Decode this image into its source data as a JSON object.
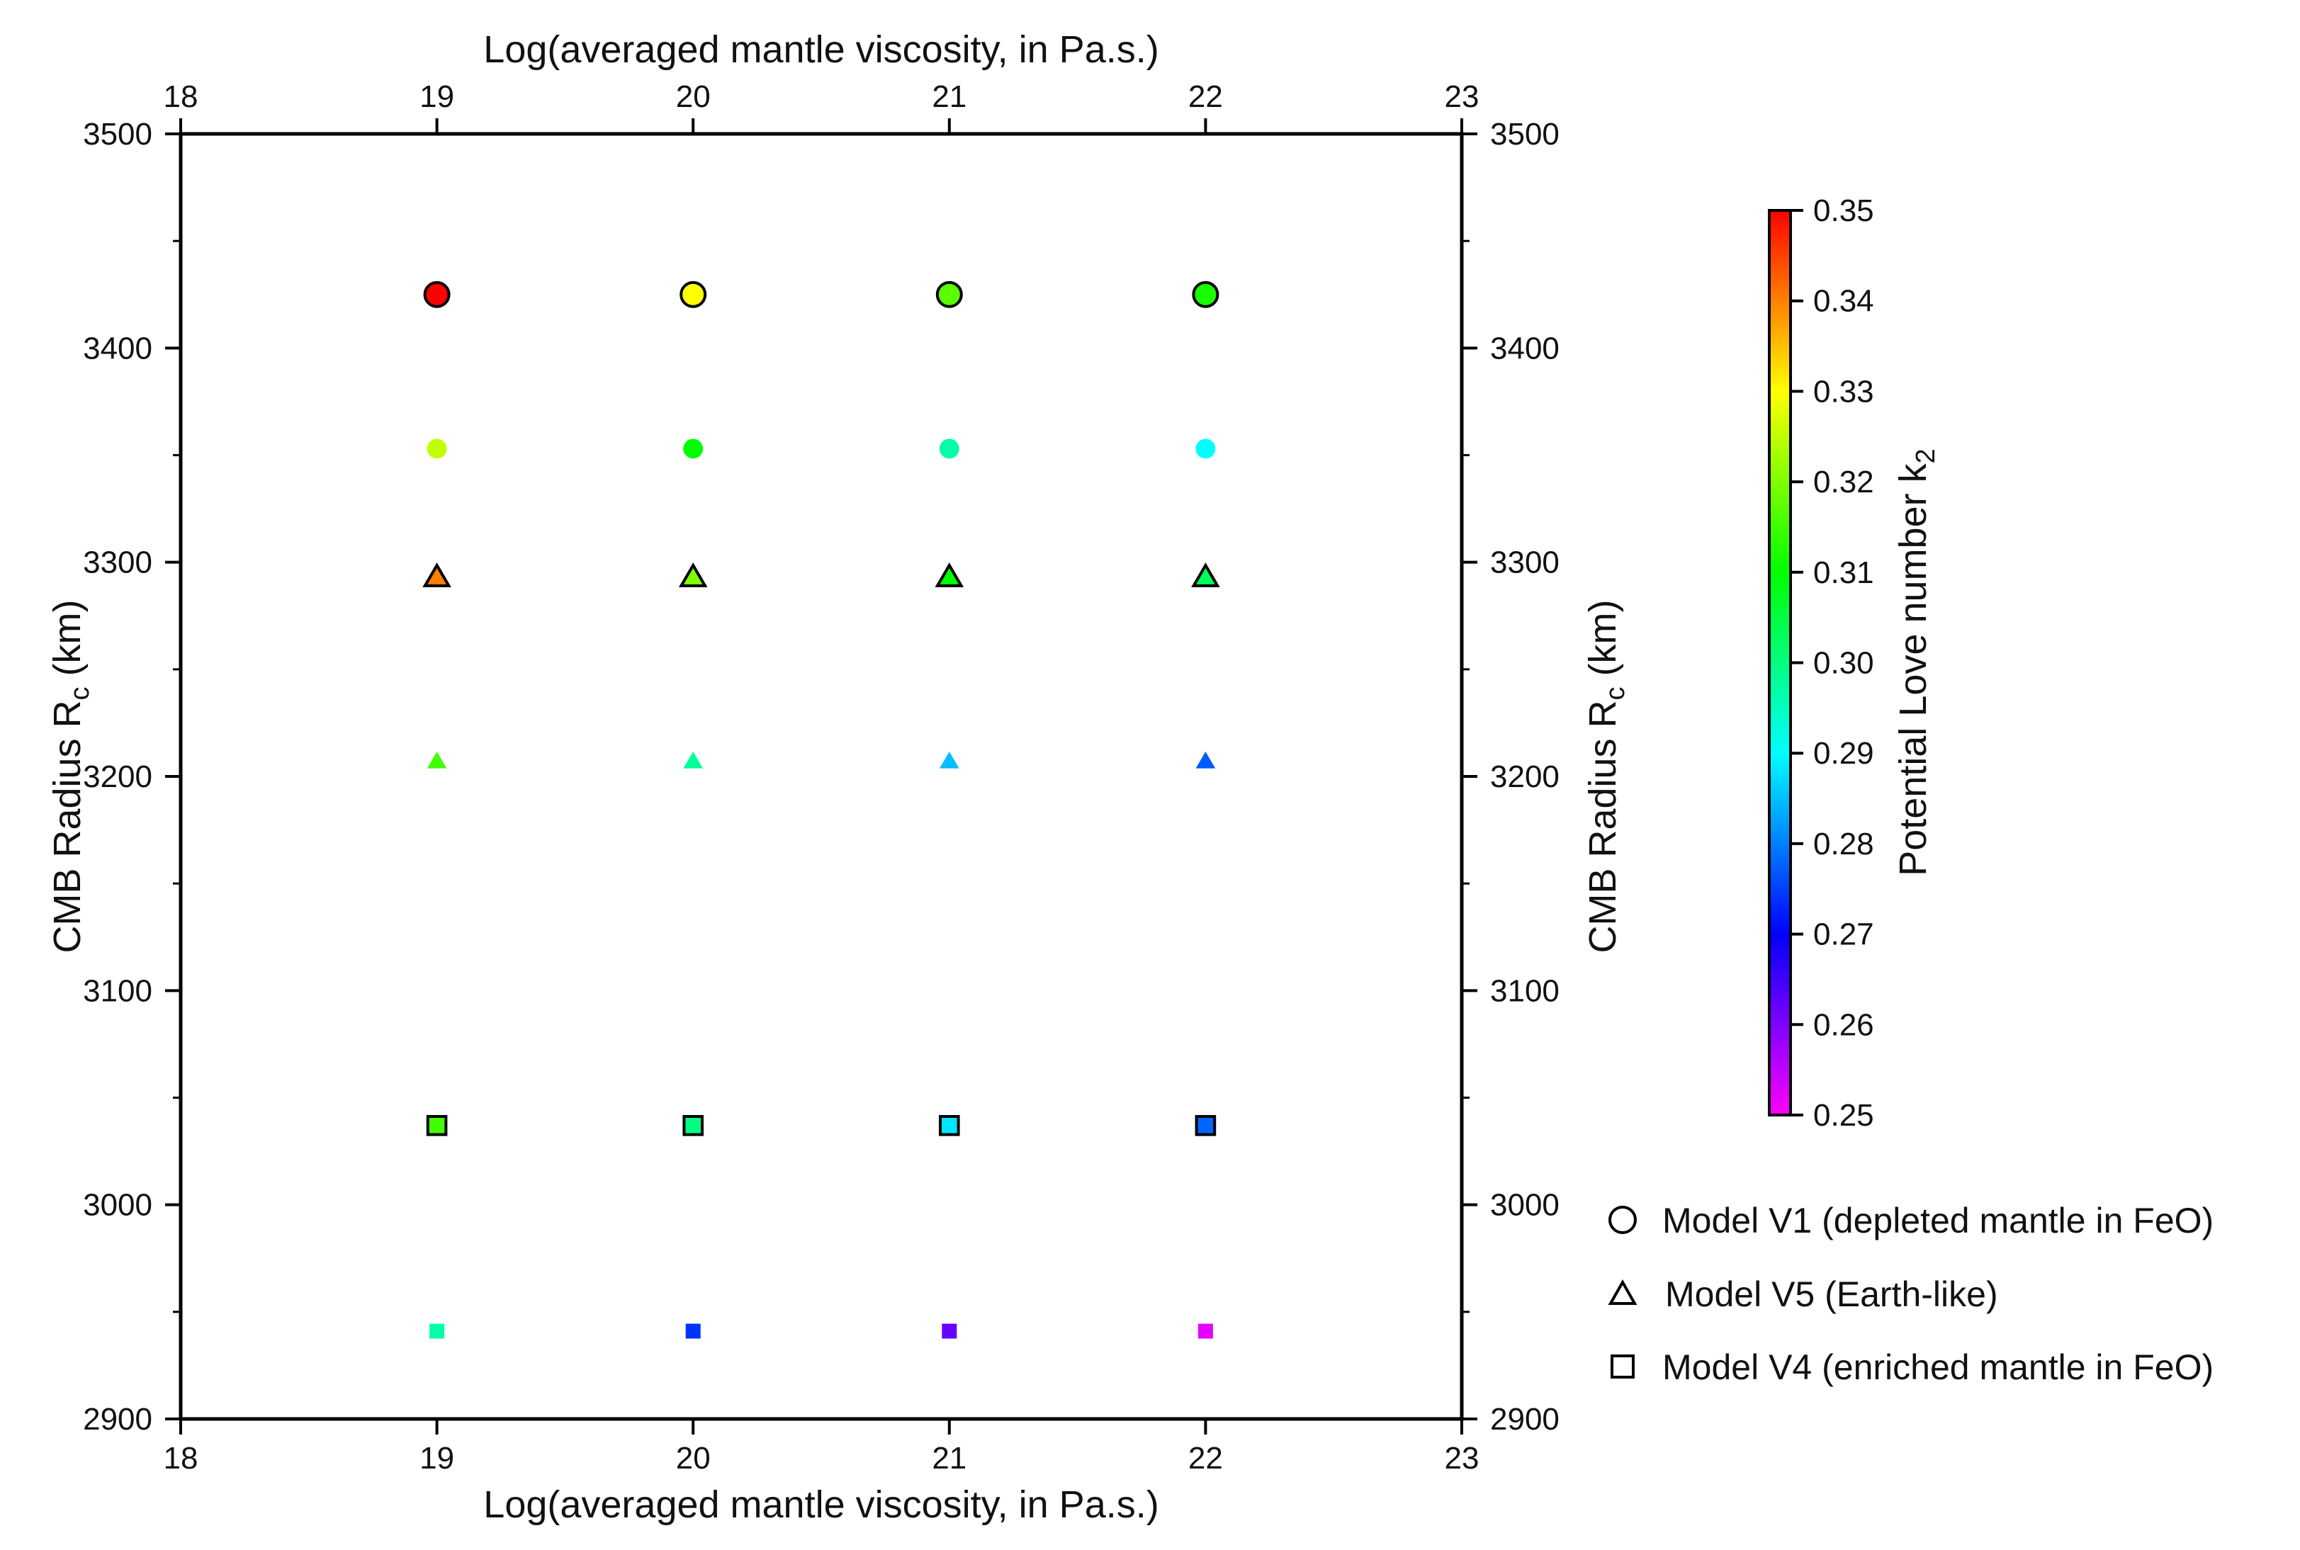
{
  "chart_data": {
    "type": "scatter",
    "x_axis": {
      "label": "Log(averaged mantle viscosity, in Pa.s.)",
      "range": [
        18,
        23
      ],
      "ticks": [
        "18",
        "19",
        "20",
        "21",
        "22",
        "23"
      ],
      "tick_values": [
        18,
        19,
        20,
        21,
        22,
        23
      ]
    },
    "y_axis": {
      "label_main": "CMB Radius R",
      "label_sub": "c",
      "label_unit": " (km)",
      "range": [
        2900,
        3500
      ],
      "ticks": [
        "2900",
        "3000",
        "3100",
        "3200",
        "3300",
        "3400",
        "3500"
      ],
      "tick_values": [
        2900,
        3000,
        3100,
        3200,
        3300,
        3400,
        3500
      ]
    },
    "colorbar": {
      "label_main": "Potential Love number k",
      "label_sub": "2",
      "range": [
        0.25,
        0.35
      ],
      "ticks": [
        "0.25",
        "0.26",
        "0.27",
        "0.28",
        "0.29",
        "0.30",
        "0.31",
        "0.32",
        "0.33",
        "0.34",
        "0.35"
      ],
      "tick_values": [
        0.25,
        0.26,
        0.27,
        0.28,
        0.29,
        0.3,
        0.31,
        0.32,
        0.33,
        0.34,
        0.35
      ],
      "colors": [
        "#ff00ff",
        "#8000ff",
        "#0000ff",
        "#0080ff",
        "#00ffff",
        "#00ff80",
        "#00ff00",
        "#80ff00",
        "#ffff00",
        "#ff8000",
        "#ff0000"
      ]
    },
    "series": [
      {
        "name": "V1-outlined",
        "marker": "circle",
        "outlined": true,
        "points": [
          {
            "x": 19,
            "y": 3425,
            "k2": 0.35
          },
          {
            "x": 20,
            "y": 3425,
            "k2": 0.33
          },
          {
            "x": 21,
            "y": 3425,
            "k2": 0.317
          },
          {
            "x": 22,
            "y": 3425,
            "k2": 0.312
          }
        ]
      },
      {
        "name": "V1-filled",
        "marker": "circle",
        "outlined": false,
        "points": [
          {
            "x": 19,
            "y": 3353,
            "k2": 0.325
          },
          {
            "x": 20,
            "y": 3353,
            "k2": 0.31
          },
          {
            "x": 21,
            "y": 3353,
            "k2": 0.297
          },
          {
            "x": 22,
            "y": 3353,
            "k2": 0.29
          }
        ]
      },
      {
        "name": "V5-outlined",
        "marker": "triangle",
        "outlined": true,
        "points": [
          {
            "x": 19,
            "y": 3293,
            "k2": 0.34
          },
          {
            "x": 20,
            "y": 3293,
            "k2": 0.32
          },
          {
            "x": 21,
            "y": 3293,
            "k2": 0.31
          },
          {
            "x": 22,
            "y": 3293,
            "k2": 0.303
          }
        ]
      },
      {
        "name": "V5-filled",
        "marker": "triangle",
        "outlined": false,
        "points": [
          {
            "x": 19,
            "y": 3207,
            "k2": 0.315
          },
          {
            "x": 20,
            "y": 3207,
            "k2": 0.298
          },
          {
            "x": 21,
            "y": 3207,
            "k2": 0.285
          },
          {
            "x": 22,
            "y": 3207,
            "k2": 0.277
          }
        ]
      },
      {
        "name": "V4-outlined",
        "marker": "square",
        "outlined": true,
        "points": [
          {
            "x": 19,
            "y": 3037,
            "k2": 0.315
          },
          {
            "x": 20,
            "y": 3037,
            "k2": 0.3
          },
          {
            "x": 21,
            "y": 3037,
            "k2": 0.288
          },
          {
            "x": 22,
            "y": 3037,
            "k2": 0.278
          }
        ]
      },
      {
        "name": "V4-filled",
        "marker": "square",
        "outlined": false,
        "points": [
          {
            "x": 19,
            "y": 2941,
            "k2": 0.297
          },
          {
            "x": 20,
            "y": 2941,
            "k2": 0.274
          },
          {
            "x": 21,
            "y": 2941,
            "k2": 0.262
          },
          {
            "x": 22,
            "y": 2941,
            "k2": 0.252
          }
        ]
      }
    ],
    "legend": [
      {
        "marker": "circle",
        "label": "Model V1 (depleted mantle in FeO)"
      },
      {
        "marker": "triangle",
        "label": "Model V5 (Earth-like)"
      },
      {
        "marker": "square",
        "label": "Model V4 (enriched mantle in FeO)"
      }
    ],
    "legend_position": "bottom-right",
    "grid": false
  }
}
